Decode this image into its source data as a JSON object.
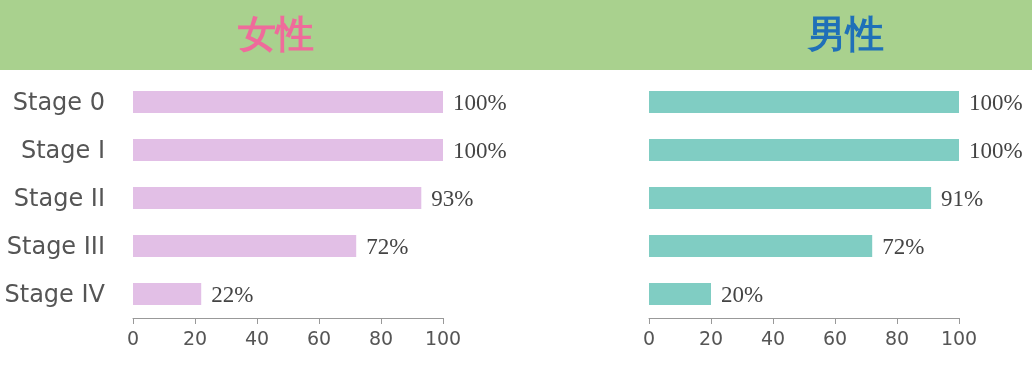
{
  "chart_data": [
    {
      "type": "bar",
      "orientation": "horizontal",
      "title": "女性",
      "categories": [
        "Stage 0",
        "Stage I",
        "Stage II",
        "Stage III",
        "Stage IV"
      ],
      "values": [
        100,
        100,
        93,
        72,
        22
      ],
      "color": "#e2bfe6",
      "value_labels": [
        "100%",
        "100%",
        "93%",
        "72%",
        "22%"
      ],
      "xlim": [
        0,
        100
      ],
      "xticks": [
        0,
        20,
        40,
        60,
        80,
        100
      ],
      "grid": false
    },
    {
      "type": "bar",
      "orientation": "horizontal",
      "title": "男性",
      "categories": [
        null,
        null,
        null,
        null,
        null
      ],
      "values": [
        100,
        100,
        91,
        72,
        20
      ],
      "color": "#80cdc3",
      "value_labels": [
        "100%",
        "100%",
        "91%",
        "72%",
        "20%"
      ],
      "xlim": [
        0,
        100
      ],
      "xticks": [
        0,
        20,
        40,
        60,
        80,
        100
      ],
      "grid": false
    }
  ]
}
